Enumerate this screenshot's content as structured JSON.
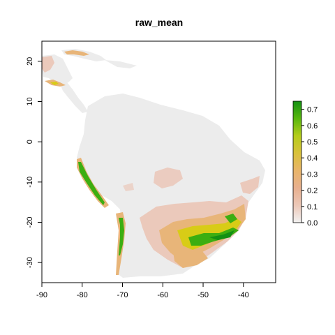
{
  "title": "raw_mean",
  "x_axis": {
    "range": [
      -90,
      -32
    ],
    "ticks": [
      -90,
      -80,
      -70,
      -60,
      -50,
      -40
    ],
    "tick_labels": [
      "-90",
      "-80",
      "-70",
      "-60",
      "-50",
      "-40"
    ]
  },
  "y_axis": {
    "range": [
      -35,
      25
    ],
    "ticks": [
      20,
      10,
      0,
      -10,
      -20,
      -30
    ],
    "tick_labels": [
      "20",
      "10",
      "0",
      "-10",
      "-20",
      "-30"
    ]
  },
  "legend": {
    "range": [
      0,
      0.75
    ],
    "ticks": [
      0.0,
      0.1,
      0.2,
      0.3,
      0.4,
      0.5,
      0.6,
      0.7
    ],
    "tick_labels": [
      "0.0",
      "0.1",
      "0.2",
      "0.3",
      "0.4",
      "0.5",
      "0.6",
      "0.7"
    ],
    "colors": [
      "#f2f2f2",
      "#ecc7b7",
      "#e8b08f",
      "#e9b56a",
      "#d9c13a",
      "#b5cc1a",
      "#58b70d",
      "#139013"
    ]
  },
  "colors": {
    "background_land": "#ececec",
    "low": "#ebc9bb",
    "mid": "#e8b579",
    "high_yellow": "#d8cc16",
    "high_green": "#3cae11",
    "top_green": "#139013"
  }
}
